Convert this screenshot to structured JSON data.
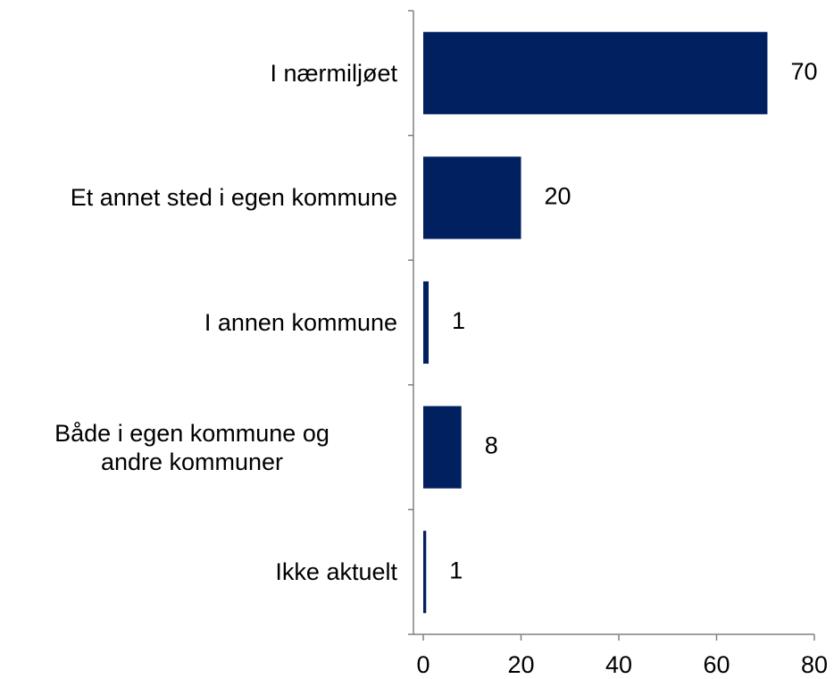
{
  "chart_data": {
    "type": "barh",
    "categories": [
      "I nærmiljøet",
      "Et annet sted i egen kommune",
      "I annen kommune",
      "Både i egen kommune og\nandre kommuner",
      "Ikke aktuelt"
    ],
    "values": [
      70.4,
      20,
      1.1,
      7.8,
      0.6
    ],
    "value_labels": [
      "70",
      "20",
      "1",
      "8",
      "1"
    ],
    "color": "#002060",
    "xlim": [
      0,
      80
    ],
    "xticks": [
      0,
      20,
      40,
      60,
      80
    ]
  }
}
